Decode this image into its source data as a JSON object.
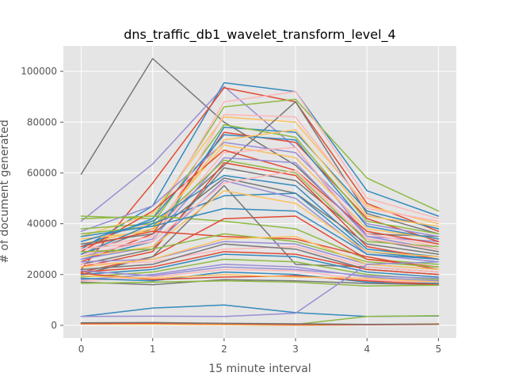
{
  "chart_data": {
    "type": "line",
    "title": "dns_traffic_db1_wavelet_transform_level_4",
    "xlabel": "15 minute interval",
    "ylabel": "# of document generated",
    "x": [
      0,
      1,
      2,
      3,
      4,
      5
    ],
    "xlim": [
      -0.25,
      5.25
    ],
    "ylim": [
      -5000,
      110000
    ],
    "xticks": [
      0,
      1,
      2,
      3,
      4,
      5
    ],
    "yticks": [
      0,
      20000,
      40000,
      60000,
      80000,
      100000
    ],
    "grid": true,
    "background": "#e5e5e5",
    "series": [
      {
        "color": "#777777",
        "values": [
          59500,
          105000,
          80000,
          63000,
          36000,
          35000
        ]
      },
      {
        "color": "#988ed5",
        "values": [
          41000,
          63500,
          94000,
          70000,
          35000,
          33000
        ]
      },
      {
        "color": "#348abd",
        "values": [
          30000,
          47000,
          95500,
          92000,
          53000,
          43000
        ]
      },
      {
        "color": "#e24a33",
        "values": [
          22000,
          56000,
          93500,
          88000,
          48000,
          37000
        ]
      },
      {
        "color": "#8eba42",
        "values": [
          43000,
          42000,
          86000,
          89000,
          58000,
          45000
        ]
      },
      {
        "color": "#fbc15e",
        "values": [
          35000,
          44000,
          82000,
          80000,
          47000,
          40000
        ]
      },
      {
        "color": "#ffb5b8",
        "values": [
          33000,
          40000,
          88000,
          92000,
          50000,
          42000
        ]
      },
      {
        "color": "#777777",
        "values": [
          28000,
          38000,
          63000,
          88000,
          44000,
          36000
        ]
      },
      {
        "color": "#348abd",
        "values": [
          26000,
          33000,
          78000,
          76000,
          45000,
          38000
        ]
      },
      {
        "color": "#e24a33",
        "values": [
          25000,
          36000,
          76000,
          72000,
          42000,
          33000
        ]
      },
      {
        "color": "#988ed5",
        "values": [
          37000,
          47000,
          72000,
          68000,
          40000,
          35000
        ]
      },
      {
        "color": "#8eba42",
        "values": [
          38000,
          40000,
          79000,
          74000,
          41000,
          36000
        ]
      },
      {
        "color": "#fbc15e",
        "values": [
          32000,
          38000,
          71000,
          66000,
          38000,
          34000
        ]
      },
      {
        "color": "#ffb5b8",
        "values": [
          30000,
          35000,
          68000,
          70000,
          36000,
          31000
        ]
      },
      {
        "color": "#348abd",
        "values": [
          31000,
          42000,
          75000,
          73000,
          39000,
          34000
        ]
      },
      {
        "color": "#e24a33",
        "values": [
          29000,
          45000,
          69000,
          61000,
          37000,
          32000
        ]
      },
      {
        "color": "#777777",
        "values": [
          24000,
          30000,
          62000,
          57000,
          34000,
          29000
        ]
      },
      {
        "color": "#988ed5",
        "values": [
          27000,
          34000,
          66000,
          64000,
          35000,
          30000
        ]
      },
      {
        "color": "#8eba42",
        "values": [
          36000,
          39000,
          65000,
          60000,
          33000,
          31000
        ]
      },
      {
        "color": "#fbc15e",
        "values": [
          34000,
          37000,
          73000,
          77000,
          43000,
          39000
        ]
      },
      {
        "color": "#ffb5b8",
        "values": [
          28000,
          33000,
          83000,
          82000,
          46000,
          41000
        ]
      },
      {
        "color": "#348abd",
        "values": [
          33000,
          41000,
          59000,
          55000,
          30000,
          27000
        ]
      },
      {
        "color": "#e24a33",
        "values": [
          23000,
          29000,
          64000,
          59000,
          31000,
          26000
        ]
      },
      {
        "color": "#777777",
        "values": [
          32000,
          36000,
          58000,
          52000,
          32000,
          28000
        ]
      },
      {
        "color": "#348abd",
        "values": [
          28000,
          40000,
          51000,
          52000,
          29000,
          26000
        ]
      },
      {
        "color": "#988ed5",
        "values": [
          26000,
          31000,
          57000,
          50000,
          28000,
          25000
        ]
      },
      {
        "color": "#8eba42",
        "values": [
          42000,
          43000,
          41000,
          38000,
          26000,
          24000
        ]
      },
      {
        "color": "#e24a33",
        "values": [
          21000,
          27000,
          42000,
          43000,
          26000,
          23000
        ]
      },
      {
        "color": "#ffb5b8",
        "values": [
          30000,
          33000,
          56000,
          61000,
          34000,
          30000
        ]
      },
      {
        "color": "#777777",
        "values": [
          20000,
          27000,
          55000,
          24000,
          23000,
          21000
        ]
      },
      {
        "color": "#fbc15e",
        "values": [
          27000,
          31000,
          53000,
          48000,
          29000,
          27000
        ]
      },
      {
        "color": "#348abd",
        "values": [
          35000,
          39000,
          46000,
          45000,
          28000,
          26000
        ]
      },
      {
        "color": "#e24a33",
        "values": [
          31000,
          37000,
          35000,
          34000,
          27000,
          22000
        ]
      },
      {
        "color": "#8eba42",
        "values": [
          29000,
          30000,
          36000,
          33000,
          25000,
          23000
        ]
      },
      {
        "color": "#988ed5",
        "values": [
          25000,
          26000,
          33000,
          32000,
          24000,
          22000
        ]
      },
      {
        "color": "#ffb5b8",
        "values": [
          24000,
          25000,
          30000,
          31000,
          23000,
          21000
        ]
      },
      {
        "color": "#777777",
        "values": [
          22000,
          24000,
          32000,
          30000,
          22000,
          20000
        ]
      },
      {
        "color": "#fbc15e",
        "values": [
          23000,
          26000,
          34000,
          35000,
          24000,
          22000
        ]
      },
      {
        "color": "#348abd",
        "values": [
          20000,
          22000,
          28000,
          27000,
          21000,
          19000
        ]
      },
      {
        "color": "#e24a33",
        "values": [
          21000,
          23000,
          29000,
          28000,
          22000,
          20000
        ]
      },
      {
        "color": "#8eba42",
        "values": [
          19000,
          21000,
          26000,
          25000,
          20000,
          18000
        ]
      },
      {
        "color": "#988ed5",
        "values": [
          18000,
          20000,
          24000,
          23000,
          19000,
          17500
        ]
      },
      {
        "color": "#ffb5b8",
        "values": [
          17500,
          19000,
          22000,
          21500,
          18000,
          16500
        ]
      },
      {
        "color": "#777777",
        "values": [
          17000,
          16000,
          18000,
          17500,
          16500,
          16000
        ]
      },
      {
        "color": "#348abd",
        "values": [
          18500,
          17500,
          21000,
          20000,
          17000,
          16500
        ]
      },
      {
        "color": "#e24a33",
        "values": [
          20500,
          18000,
          19000,
          19500,
          17500,
          16000
        ]
      },
      {
        "color": "#8eba42",
        "values": [
          16500,
          17000,
          17500,
          17000,
          15500,
          15800
        ]
      },
      {
        "color": "#fbc15e",
        "values": [
          19500,
          18500,
          20000,
          19000,
          18500,
          17000
        ]
      },
      {
        "color": "#988ed5",
        "values": [
          21500,
          19500,
          23000,
          22000,
          19500,
          18500
        ]
      },
      {
        "color": "#348abd",
        "values": [
          3500,
          6800,
          8000,
          5000,
          3500,
          3700
        ]
      },
      {
        "color": "#988ed5",
        "values": [
          3500,
          3600,
          3500,
          4800,
          24000,
          25000
        ]
      },
      {
        "color": "#8eba42",
        "values": [
          800,
          700,
          500,
          400,
          3500,
          3800
        ]
      },
      {
        "color": "#fbc15e",
        "values": [
          500,
          400,
          200,
          0,
          200,
          700
        ]
      },
      {
        "color": "#e24a33",
        "values": [
          700,
          800,
          600,
          300,
          200,
          400
        ]
      },
      {
        "color": "#777777",
        "values": [
          1000,
          1100,
          800,
          600,
          400,
          500
        ]
      }
    ]
  }
}
